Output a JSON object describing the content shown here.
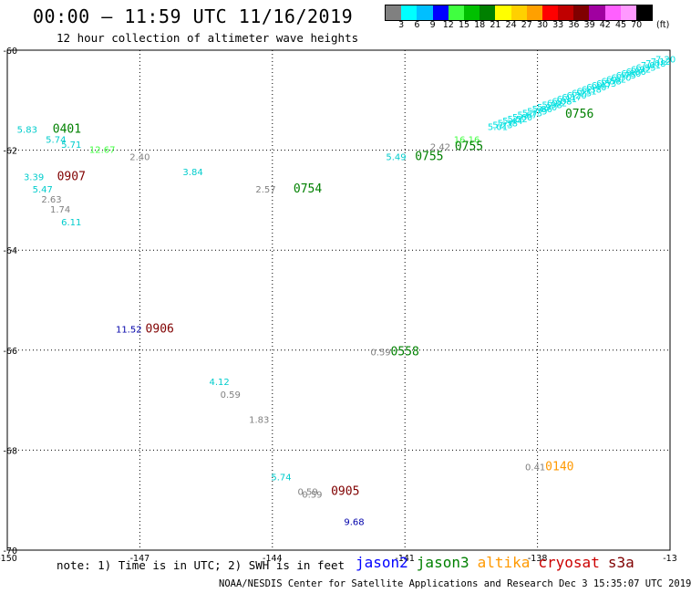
{
  "header": {
    "title": "00:00 – 11:59 UTC 11/16/2019",
    "subtitle": "12 hour collection of altimeter wave heights"
  },
  "colorbar": {
    "unit": "(ft)",
    "labels": [
      "3",
      "6",
      "9",
      "12",
      "15",
      "18",
      "21",
      "24",
      "27",
      "30",
      "33",
      "36",
      "39",
      "42",
      "45",
      "70"
    ],
    "colors": [
      "#808080",
      "#00ffff",
      "#00bfff",
      "#0000ff",
      "#40ff40",
      "#00c000",
      "#008000",
      "#ffff00",
      "#ffd000",
      "#ffa000",
      "#ff0000",
      "#c00000",
      "#800000",
      "#a000a0",
      "#ff60ff",
      "#ff99ff",
      "#000000"
    ]
  },
  "footer": {
    "note": "note: 1) Time is in UTC; 2) SWH is in feet",
    "credit": "NOAA/NESDIS Center for Satellite Applications and Research    Dec  3 15:35:07 UTC 2019",
    "legend": [
      {
        "name": "jason2",
        "color": "#0000ff"
      },
      {
        "name": "jason3",
        "color": "#008000"
      },
      {
        "name": "altika",
        "color": "#ff9900"
      },
      {
        "name": "cryosat",
        "color": "#cc0000"
      },
      {
        "name": "s3a",
        "color": "#800000"
      }
    ]
  },
  "chart_data": {
    "type": "scatter",
    "x_ticks": [
      "-150",
      "-147",
      "-144",
      "-141",
      "-138",
      "-13"
    ],
    "y_ticks": [
      "-60",
      "-62",
      "-64",
      "-66",
      "-68",
      "-70"
    ],
    "xlim": [
      -150,
      -135
    ],
    "ylim": [
      -70,
      -60
    ],
    "grid": true,
    "time_labels": [
      {
        "text": "0401",
        "lon": -148.65,
        "lat": -61.65,
        "color": "#008000"
      },
      {
        "text": "0907",
        "lon": -148.55,
        "lat": -62.6,
        "color": "#800000"
      },
      {
        "text": "0754",
        "lon": -143.2,
        "lat": -62.85,
        "color": "#008000"
      },
      {
        "text": "0755",
        "lon": -140.45,
        "lat": -62.2,
        "color": "#008000"
      },
      {
        "text": "0755",
        "lon": -139.55,
        "lat": -62.0,
        "color": "#008000"
      },
      {
        "text": "0756",
        "lon": -137.05,
        "lat": -61.35,
        "color": "#008000"
      },
      {
        "text": "0906",
        "lon": -146.55,
        "lat": -65.65,
        "color": "#800000"
      },
      {
        "text": "0558",
        "lon": -141.0,
        "lat": -66.1,
        "color": "#008000"
      },
      {
        "text": "0140",
        "lon": -137.5,
        "lat": -68.4,
        "color": "#ff9900"
      },
      {
        "text": "0905",
        "lon": -142.35,
        "lat": -68.9,
        "color": "#800000"
      }
    ],
    "points": [
      {
        "text": "5.83",
        "lon": -149.55,
        "lat": -61.65,
        "color": "#00cccc"
      },
      {
        "text": "5.74",
        "lon": -148.9,
        "lat": -61.85,
        "color": "#00cccc"
      },
      {
        "text": "5.71",
        "lon": -148.55,
        "lat": -61.95,
        "color": "#00cccc"
      },
      {
        "text": "12.67",
        "lon": -147.85,
        "lat": -62.05,
        "color": "#40ff40"
      },
      {
        "text": "2.40",
        "lon": -147.0,
        "lat": -62.2,
        "color": "#808080"
      },
      {
        "text": "3.84",
        "lon": -145.8,
        "lat": -62.5,
        "color": "#00cccc"
      },
      {
        "text": "3.39",
        "lon": -149.4,
        "lat": -62.6,
        "color": "#00cccc"
      },
      {
        "text": "5.47",
        "lon": -149.2,
        "lat": -62.85,
        "color": "#00cccc"
      },
      {
        "text": "2.63",
        "lon": -149.0,
        "lat": -63.05,
        "color": "#808080"
      },
      {
        "text": "1.74",
        "lon": -148.8,
        "lat": -63.25,
        "color": "#808080"
      },
      {
        "text": "6.11",
        "lon": -148.55,
        "lat": -63.5,
        "color": "#00cccc"
      },
      {
        "text": "2.57",
        "lon": -144.15,
        "lat": -62.85,
        "color": "#808080"
      },
      {
        "text": "5.49",
        "lon": -141.2,
        "lat": -62.2,
        "color": "#00cccc"
      },
      {
        "text": "2.42",
        "lon": -140.2,
        "lat": -62.0,
        "color": "#808080"
      },
      {
        "text": "16.16",
        "lon": -139.6,
        "lat": -61.85,
        "color": "#40ff40"
      },
      {
        "text": "11.52",
        "lon": -147.25,
        "lat": -65.65,
        "color": "#0000aa"
      },
      {
        "text": "0.59",
        "lon": -141.55,
        "lat": -66.1,
        "color": "#808080"
      },
      {
        "text": "4.12",
        "lon": -145.2,
        "lat": -66.7,
        "color": "#00cccc"
      },
      {
        "text": "0.59",
        "lon": -144.95,
        "lat": -66.95,
        "color": "#808080"
      },
      {
        "text": "1.83",
        "lon": -144.3,
        "lat": -67.45,
        "color": "#808080"
      },
      {
        "text": "0.41",
        "lon": -138.05,
        "lat": -68.4,
        "color": "#808080"
      },
      {
        "text": "5.74",
        "lon": -143.8,
        "lat": -68.6,
        "color": "#00cccc"
      },
      {
        "text": "0.59",
        "lon": -143.2,
        "lat": -68.9,
        "color": "#808080"
      },
      {
        "text": "0.59",
        "lon": -143.1,
        "lat": -68.95,
        "color": "#808080"
      },
      {
        "text": "9.68",
        "lon": -142.15,
        "lat": -69.5,
        "color": "#0000aa"
      }
    ],
    "track_values": [
      "5.01",
      "5.23",
      "5.38",
      "5.44",
      "5.52",
      "5.60",
      "5.67",
      "5.73",
      "5.79",
      "5.86",
      "5.90",
      "5.98",
      "6.02",
      "6.08",
      "6.11",
      "6.17",
      "6.20",
      "6.25",
      "6.31",
      "6.38",
      "6.40",
      "6.47",
      "6.53",
      "6.58",
      "6.62",
      "6.70",
      "6.75",
      "6.80",
      "6.86",
      "6.92",
      "6.95",
      "7.01",
      "7.08",
      "7.12",
      "7.20"
    ],
    "track": {
      "color": "#00e0e0",
      "start_lon": -138.9,
      "start_lat": -61.6,
      "end_lon": -135.1,
      "end_lat": -60.25
    }
  }
}
